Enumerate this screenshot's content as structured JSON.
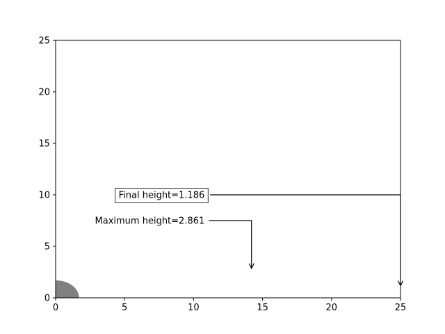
{
  "chart_data": {
    "type": "line",
    "title": "",
    "xlabel": "",
    "ylabel": "",
    "xlim": [
      0,
      25
    ],
    "ylim": [
      0,
      25
    ],
    "xticks": [
      "0",
      "5",
      "10",
      "15",
      "20",
      "25"
    ],
    "yticks": [
      "0",
      "5",
      "10",
      "15",
      "20",
      "25"
    ],
    "grid": false,
    "object": {
      "shape": "circle",
      "center": [
        0,
        0
      ],
      "radius": 1.7,
      "color": "#808080"
    },
    "annotations": [
      {
        "text": "Final height=1.186",
        "text_x": 10.8,
        "text_y": 10,
        "arrow_to": [
          25,
          1.186
        ],
        "boxed": true
      },
      {
        "text": "Maximum height=2.861",
        "text_x": 10.8,
        "text_y": 7.5,
        "arrow_to": [
          14.2,
          2.861
        ],
        "boxed": false
      }
    ]
  }
}
